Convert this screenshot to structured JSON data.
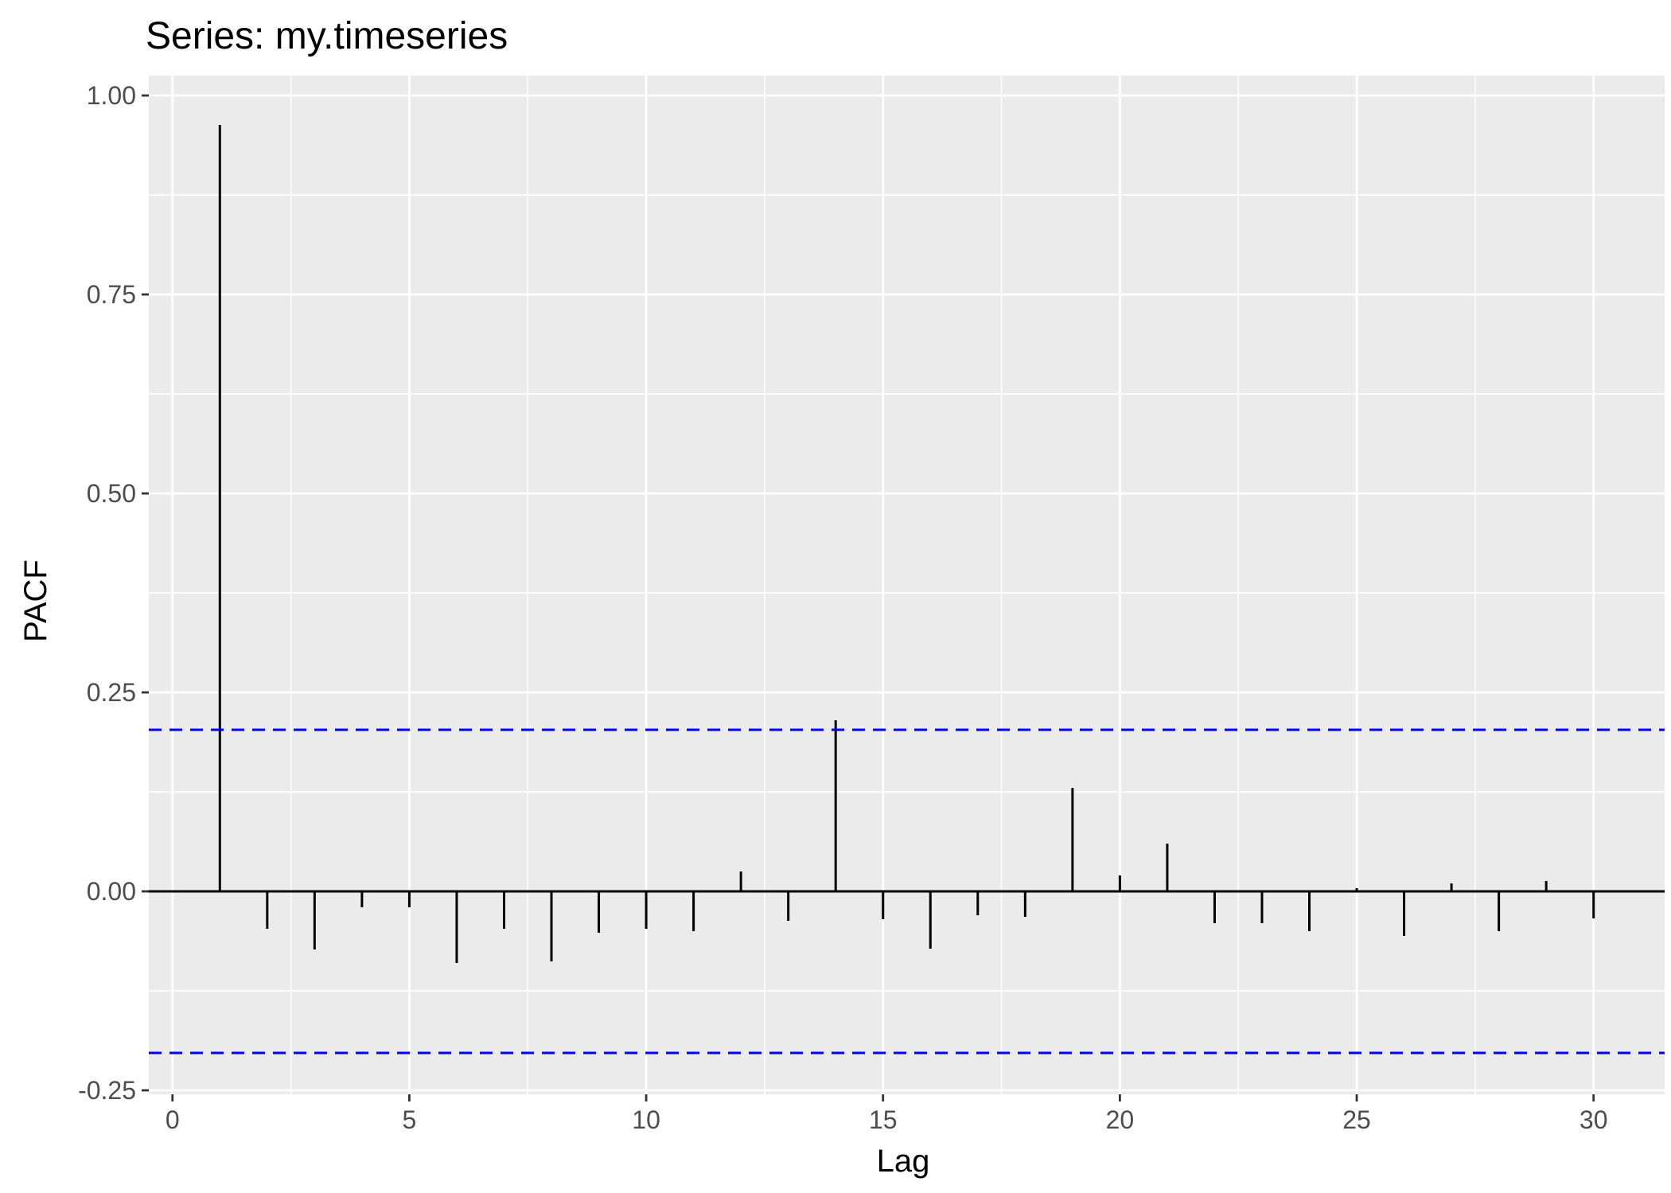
{
  "chart_data": {
    "type": "bar",
    "title": "Series: my.timeseries",
    "xlabel": "Lag",
    "ylabel": "PACF",
    "xlim": [
      -0.5,
      31.5
    ],
    "ylim": [
      -0.255,
      1.025
    ],
    "x_ticks": [
      0,
      5,
      10,
      15,
      20,
      25,
      30
    ],
    "x_tick_labels": [
      "0",
      "5",
      "10",
      "15",
      "20",
      "25",
      "30"
    ],
    "y_ticks": [
      -0.25,
      0,
      0.25,
      0.5,
      0.75,
      1
    ],
    "y_tick_labels": [
      "-0.25",
      "0.00",
      "0.25",
      "0.50",
      "0.75",
      "1.00"
    ],
    "lags": [
      1,
      2,
      3,
      4,
      5,
      6,
      7,
      8,
      9,
      10,
      11,
      12,
      13,
      14,
      15,
      16,
      17,
      18,
      19,
      20,
      21,
      22,
      23,
      24,
      25,
      26,
      27,
      28,
      29,
      30
    ],
    "values": [
      0.963,
      -0.047,
      -0.073,
      -0.02,
      -0.02,
      -0.09,
      -0.047,
      -0.088,
      -0.052,
      -0.047,
      -0.05,
      0.025,
      -0.037,
      0.215,
      -0.035,
      -0.072,
      -0.03,
      -0.032,
      0.13,
      0.02,
      0.06,
      -0.04,
      -0.04,
      -0.05,
      0.004,
      -0.056,
      0.01,
      -0.05,
      0.013,
      -0.034
    ],
    "confidence_limit": 0.203,
    "grid": true,
    "colors": {
      "panel_background": "#EBEBEB",
      "grid": "#FFFFFF",
      "bars": "#000000",
      "confidence_lines": "#0000FF"
    }
  }
}
